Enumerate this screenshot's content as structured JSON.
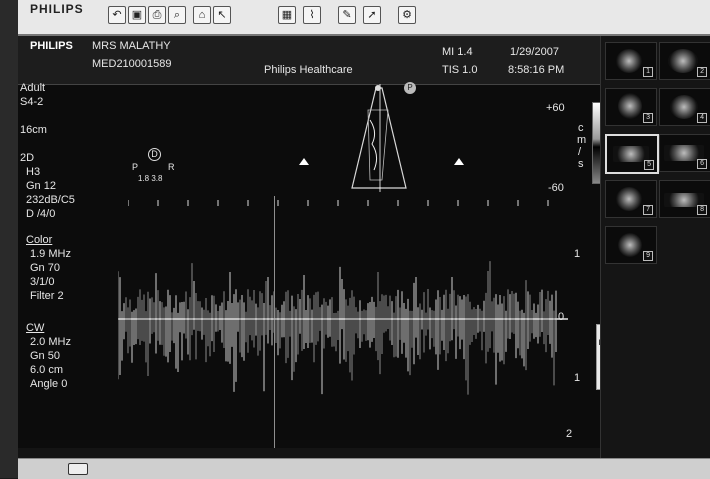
{
  "menubar": {
    "brand": "PHILIPS",
    "tools": [
      "",
      "",
      "",
      "",
      "",
      "",
      "",
      "",
      "",
      "",
      ""
    ]
  },
  "header": {
    "brand": "PHILIPS",
    "patient_name": "MRS MALATHY",
    "patient_id": "MED210001589",
    "institution": "Philips Healthcare",
    "mi": "MI 1.4",
    "tis": "TIS 1.0",
    "date": "1/29/2007",
    "time": "8:58:16 PM"
  },
  "left_panel": {
    "preset": "Adult",
    "probe": "S4-2",
    "depth": "16cm",
    "mode_2d": {
      "label": "2D",
      "lines": [
        "H3",
        "Gn 12",
        "232dB/C5",
        "D /4/0"
      ]
    },
    "color": {
      "label": "Color",
      "lines": [
        "1.9 MHz",
        "Gn 70",
        "3/1/0",
        "Filter 2"
      ]
    },
    "cw": {
      "label": "CW",
      "lines": [
        "2.0 MHz",
        "Gn 50",
        "6.0 cm",
        "Angle 0"
      ]
    }
  },
  "orientation": {
    "top": "D",
    "left": "P",
    "right": "R",
    "values": "1.8 3.8"
  },
  "color_scale": {
    "top": "+60",
    "bottom": "-60",
    "unit_chars": [
      "c",
      "m",
      "/",
      "s"
    ]
  },
  "velocity_scale": {
    "labels": [
      "1",
      "0",
      "1",
      "2"
    ],
    "unit_chars": [
      "+",
      "m",
      "/",
      "s"
    ]
  },
  "thumbnails": [
    {
      "num": "1"
    },
    {
      "num": "2"
    },
    {
      "num": "3"
    },
    {
      "num": "4"
    },
    {
      "num": "5"
    },
    {
      "num": "6"
    },
    {
      "num": "7"
    },
    {
      "num": "8"
    },
    {
      "num": "9"
    }
  ]
}
